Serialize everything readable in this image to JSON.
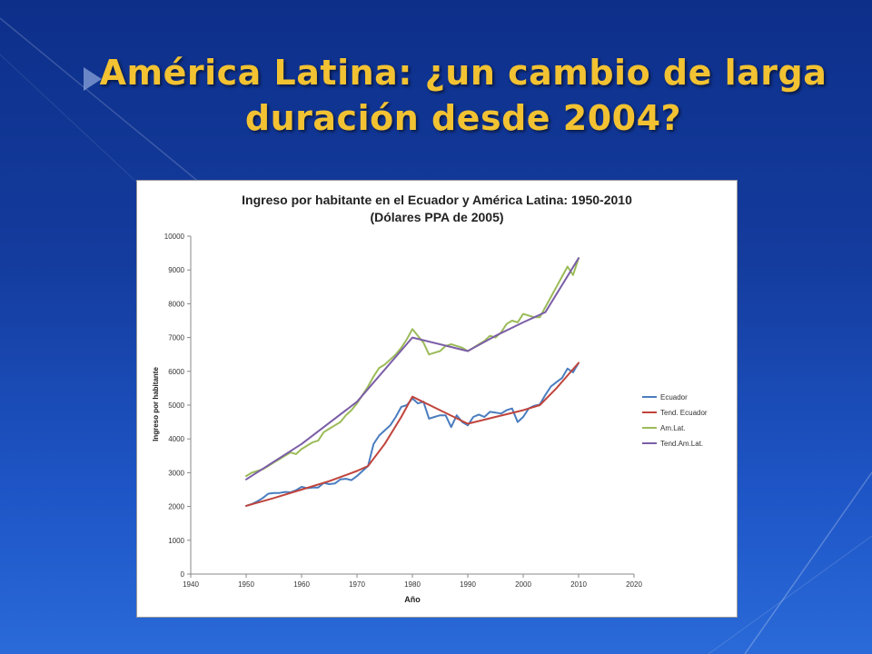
{
  "slide": {
    "title_line1": "América Latina: ¿un cambio de larga",
    "title_line2": "duración desde 2004?",
    "title_color": "#f2c232"
  },
  "chart_data": {
    "type": "line",
    "title": "Ingreso por habitante en el Ecuador y América Latina: 1950-2010",
    "subtitle": "(Dólares PPA de 2005)",
    "xlabel": "Año",
    "ylabel": "Ingreso por habitante",
    "xlim": [
      1940,
      2020
    ],
    "ylim": [
      0,
      10000
    ],
    "xticks": [
      1940,
      1950,
      1960,
      1970,
      1980,
      1990,
      2000,
      2010,
      2020
    ],
    "yticks": [
      0,
      1000,
      2000,
      3000,
      4000,
      5000,
      6000,
      7000,
      8000,
      9000,
      10000
    ],
    "grid": false,
    "legend_position": "right",
    "series": [
      {
        "name": "Ecuador",
        "color": "#4a7dbf",
        "x": [
          1950,
          1951,
          1952,
          1953,
          1954,
          1955,
          1956,
          1957,
          1958,
          1959,
          1960,
          1961,
          1962,
          1963,
          1964,
          1965,
          1966,
          1967,
          1968,
          1969,
          1970,
          1971,
          1972,
          1973,
          1974,
          1975,
          1976,
          1977,
          1978,
          1979,
          1980,
          1981,
          1982,
          1983,
          1984,
          1985,
          1986,
          1987,
          1988,
          1989,
          1990,
          1991,
          1992,
          1993,
          1994,
          1995,
          1996,
          1997,
          1998,
          1999,
          2000,
          2001,
          2002,
          2003,
          2004,
          2005,
          2006,
          2007,
          2008,
          2009,
          2010
        ],
        "y": [
          2020,
          2070,
          2150,
          2250,
          2380,
          2400,
          2400,
          2430,
          2420,
          2480,
          2580,
          2540,
          2560,
          2560,
          2700,
          2660,
          2680,
          2800,
          2820,
          2780,
          2900,
          3050,
          3200,
          3850,
          4100,
          4250,
          4400,
          4650,
          4950,
          5000,
          5200,
          5050,
          5100,
          4600,
          4650,
          4700,
          4700,
          4350,
          4700,
          4500,
          4400,
          4650,
          4720,
          4650,
          4800,
          4780,
          4750,
          4850,
          4900,
          4500,
          4650,
          4900,
          4980,
          5020,
          5300,
          5550,
          5680,
          5800,
          6080,
          5970,
          6250
        ]
      },
      {
        "name": "Tend. Ecuador",
        "color": "#c0443c",
        "x": [
          1950,
          1955,
          1960,
          1965,
          1970,
          1972,
          1975,
          1978,
          1980,
          1985,
          1990,
          1995,
          2000,
          2003,
          2006,
          2010
        ],
        "y": [
          2020,
          2250,
          2500,
          2750,
          3050,
          3200,
          3850,
          4650,
          5250,
          4850,
          4450,
          4650,
          4850,
          5000,
          5500,
          6250
        ]
      },
      {
        "name": "Am.Lat.",
        "color": "#9bbb59",
        "x": [
          1950,
          1951,
          1952,
          1953,
          1954,
          1955,
          1956,
          1957,
          1958,
          1959,
          1960,
          1961,
          1962,
          1963,
          1964,
          1965,
          1966,
          1967,
          1968,
          1969,
          1970,
          1971,
          1972,
          1973,
          1974,
          1975,
          1976,
          1977,
          1978,
          1979,
          1980,
          1981,
          1982,
          1983,
          1984,
          1985,
          1986,
          1987,
          1988,
          1989,
          1990,
          1991,
          1992,
          1993,
          1994,
          1995,
          1996,
          1997,
          1998,
          1999,
          2000,
          2001,
          2002,
          2003,
          2004,
          2005,
          2006,
          2007,
          2008,
          2009,
          2010
        ],
        "y": [
          2900,
          3000,
          3050,
          3100,
          3200,
          3300,
          3400,
          3500,
          3600,
          3550,
          3700,
          3800,
          3900,
          3950,
          4200,
          4300,
          4400,
          4500,
          4700,
          4850,
          5050,
          5300,
          5550,
          5850,
          6100,
          6200,
          6350,
          6500,
          6700,
          6950,
          7250,
          7050,
          6850,
          6500,
          6550,
          6600,
          6750,
          6800,
          6750,
          6700,
          6600,
          6700,
          6800,
          6900,
          7050,
          7000,
          7150,
          7400,
          7500,
          7450,
          7700,
          7650,
          7600,
          7600,
          7900,
          8200,
          8500,
          8800,
          9100,
          8850,
          9350
        ]
      },
      {
        "name": "Tend.Am.Lat.",
        "color": "#7b5ea7",
        "x": [
          1950,
          1960,
          1970,
          1980,
          1990,
          1995,
          2000,
          2004,
          2010
        ],
        "y": [
          2800,
          3850,
          5100,
          7000,
          6600,
          7050,
          7450,
          7750,
          9350
        ]
      }
    ]
  }
}
